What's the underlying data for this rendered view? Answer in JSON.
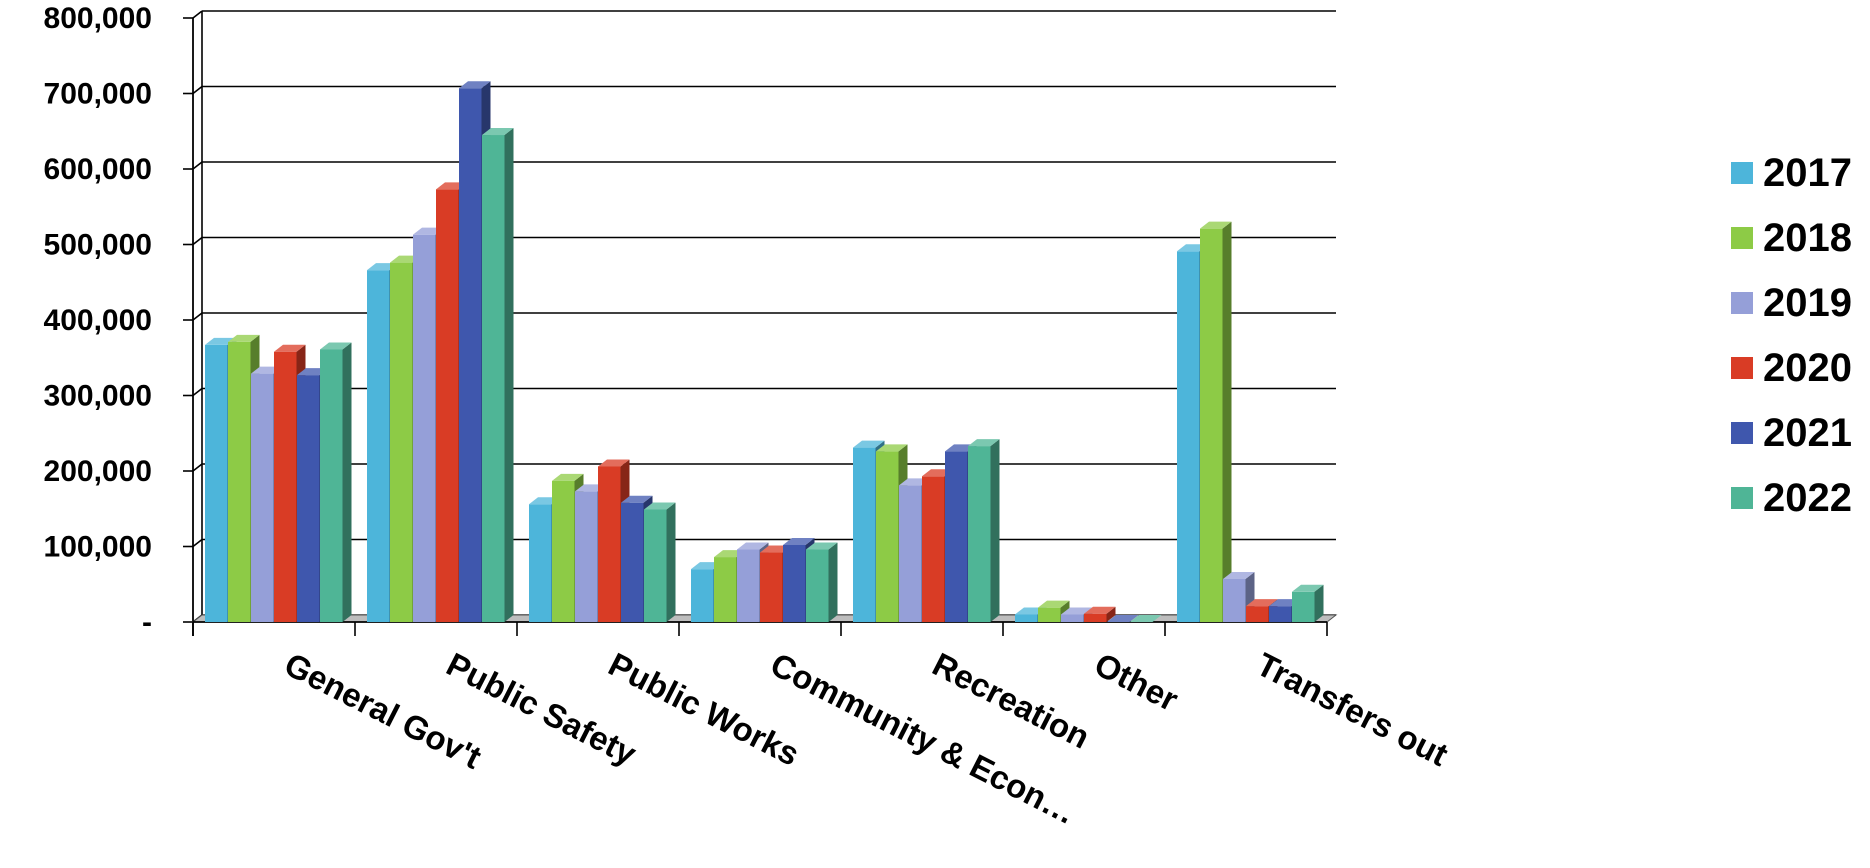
{
  "chart_data": {
    "type": "bar",
    "style": "3d-clustered-column",
    "categories": [
      "General Gov't",
      "Public Safety",
      "Public Works",
      "Community & Econ…",
      "Recreation",
      "Other",
      "Transfers out"
    ],
    "series": [
      {
        "name": "2017",
        "color": "#4DB5DA",
        "values": [
          367000,
          466000,
          156000,
          70000,
          231000,
          10000,
          491000
        ]
      },
      {
        "name": "2018",
        "color": "#8DCB46",
        "values": [
          371000,
          476000,
          187000,
          86000,
          226000,
          19000,
          521000
        ]
      },
      {
        "name": "2019",
        "color": "#959FD8",
        "values": [
          329000,
          513000,
          173000,
          96000,
          181000,
          10000,
          57000
        ]
      },
      {
        "name": "2020",
        "color": "#D93C25",
        "values": [
          358000,
          573000,
          206000,
          92000,
          193000,
          11000,
          21000
        ]
      },
      {
        "name": "2021",
        "color": "#3F57AD",
        "values": [
          327000,
          707000,
          158000,
          102000,
          226000,
          0,
          21000
        ]
      },
      {
        "name": "2022",
        "color": "#4FB596",
        "values": [
          361000,
          645000,
          149000,
          96000,
          233000,
          0,
          40000
        ]
      }
    ],
    "y_ticks": [
      "-",
      "100,000",
      "200,000",
      "300,000",
      "400,000",
      "500,000",
      "600,000",
      "700,000",
      "800,000"
    ],
    "ylim": [
      0,
      800000
    ],
    "grid": true,
    "legend_position": "right",
    "title": "",
    "xlabel": "",
    "ylabel": ""
  }
}
